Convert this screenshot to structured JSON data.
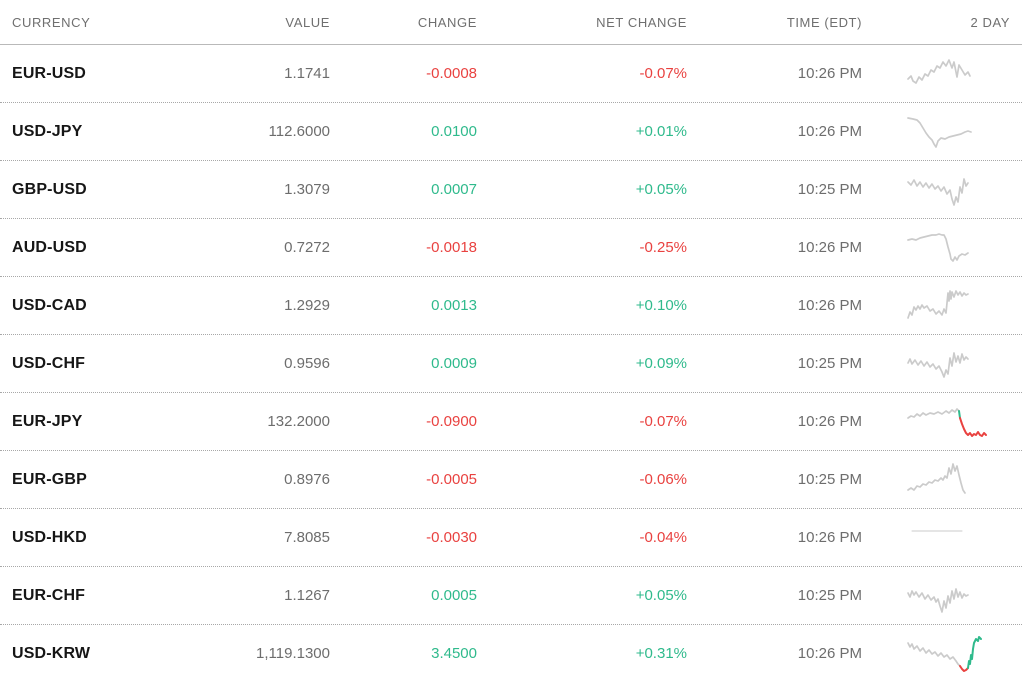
{
  "colors": {
    "up": "#2fba8c",
    "down": "#e94240",
    "neutral": "#cbcbcb",
    "header_text": "#6f6f6f",
    "label_text": "#161616",
    "value_text": "#6d6d6d"
  },
  "table": {
    "columns": [
      "CURRENCY",
      "VALUE",
      "CHANGE",
      "NET CHANGE",
      "TIME (EDT)",
      "2 DAY"
    ],
    "rows": [
      {
        "currency": "EUR-USD",
        "value": "1.1741",
        "change": "-0.0008",
        "net_change": "-0.07%",
        "time": "10:26 PM",
        "trend": "down",
        "spark": [
          {
            "c": "neutral",
            "p": "4,26 7,23 9,28 12,30 15,24 18,27 21,21 24,23 27,17 30,19 33,13 36,15 39,9 42,13 45,7 48,15 50,9 53,24 55,12 58,17 61,22 64,19 66,23"
          }
        ]
      },
      {
        "currency": "USD-JPY",
        "value": "112.6000",
        "change": "0.0100",
        "net_change": "+0.01%",
        "time": "10:26 PM",
        "trend": "up",
        "spark": [
          {
            "c": "neutral",
            "p": "4,7 9,8 13,9 16,12 19,17 22,22 25,26 28,29 30,33 32,36 34,30 37,27 41,28 45,26 49,25 53,24 57,23 61,21 64,20 67,21"
          }
        ]
      },
      {
        "currency": "GBP-USD",
        "value": "1.3079",
        "change": "0.0007",
        "net_change": "+0.05%",
        "time": "10:25 PM",
        "trend": "up",
        "spark": [
          {
            "c": "neutral",
            "p": "4,13 7,16 10,11 13,17 16,13 19,18 22,14 25,19 28,15 31,20 34,17 37,22 40,18 43,25 46,21 48,30 50,36 52,28 54,33 56,18 58,24 60,10 62,17 64,14"
          }
        ]
      },
      {
        "currency": "AUD-USD",
        "value": "0.7272",
        "change": "-0.0018",
        "net_change": "-0.25%",
        "time": "10:26 PM",
        "trend": "down",
        "spark": [
          {
            "c": "neutral",
            "p": "4,13 8,12 12,13 16,11 20,10 24,9 28,8 32,8 35,7 38,8 40,8 42,12 44,20 46,27 47,32 49,34 51,30 53,33 55,29 58,27 61,28 64,26"
          }
        ]
      },
      {
        "currency": "USD-CAD",
        "value": "1.2929",
        "change": "0.0013",
        "net_change": "+0.10%",
        "time": "10:26 PM",
        "trend": "up",
        "spark": [
          {
            "c": "neutral",
            "p": "4,33 6,27 8,30 10,22 12,25 14,21 16,24 18,20 20,23 23,21 26,26 29,24 32,29 35,26 38,30 40,24 42,28 44,8 45,16 46,6 47,14 48,7 50,12 52,6 54,10 56,7 58,11 60,8 62,10 64,9"
          }
        ]
      },
      {
        "currency": "USD-CHF",
        "value": "0.9596",
        "change": "0.0009",
        "net_change": "+0.09%",
        "time": "10:25 PM",
        "trend": "up",
        "spark": [
          {
            "c": "neutral",
            "p": "4,20 6,16 8,21 11,17 14,22 17,18 20,23 23,19 26,24 29,21 32,26 35,23 38,29 40,34 42,27 44,31 46,15 48,23 50,10 52,19 54,13 56,20 58,11 60,17 62,14 64,16"
          }
        ]
      },
      {
        "currency": "EUR-JPY",
        "value": "132.2000",
        "change": "-0.0900",
        "net_change": "-0.07%",
        "time": "10:26 PM",
        "trend": "down",
        "spark": [
          {
            "c": "neutral",
            "p": "4,17 7,15 10,16 13,13 16,15 19,12 22,14 26,12 30,13 34,11 38,13 42,10 45,12 48,9 51,11 53,8 55,10"
          },
          {
            "c": "up",
            "w": 2,
            "p": "55,10 56,17"
          },
          {
            "c": "down",
            "w": 2,
            "p": "56,17 58,23 60,28 62,32 64,34 66,32 68,35 70,33 72,34 74,31 76,34 78,35 80,32 82,34"
          }
        ]
      },
      {
        "currency": "EUR-GBP",
        "value": "0.8976",
        "change": "-0.0005",
        "net_change": "-0.06%",
        "time": "10:25 PM",
        "trend": "down",
        "spark": [
          {
            "c": "neutral",
            "p": "4,31 7,29 10,31 13,27 16,28 19,25 22,26 25,23 28,24 31,21 34,22 37,19 39,21 41,17 43,19 45,9 47,15 49,5 51,12 53,7 55,16 57,24 59,31 61,34"
          }
        ]
      },
      {
        "currency": "USD-HKD",
        "value": "7.8085",
        "change": "-0.0030",
        "net_change": "-0.04%",
        "time": "10:26 PM",
        "trend": "down",
        "spark": [
          {
            "c": "neutral",
            "w": 1,
            "p": "8,14 58,14"
          }
        ]
      },
      {
        "currency": "EUR-CHF",
        "value": "1.1267",
        "change": "0.0005",
        "net_change": "+0.05%",
        "time": "10:25 PM",
        "trend": "up",
        "spark": [
          {
            "c": "neutral",
            "p": "4,18 6,22 8,16 10,20 12,17 15,22 18,18 21,24 24,20 27,25 30,22 32,27 34,24 36,31 38,37 40,26 42,33 44,21 46,28 48,16 50,24 52,14 54,22 56,17 58,23 60,19 62,21 64,20"
          }
        ]
      },
      {
        "currency": "USD-KRW",
        "value": "1,119.1300",
        "change": "3.4500",
        "net_change": "+0.31%",
        "time": "10:26 PM",
        "trend": "up",
        "spark": [
          {
            "c": "neutral",
            "p": "4,10 6,14 8,11 10,16 13,13 16,18 19,15 22,20 25,17 28,21 31,19 34,23 37,20 40,24 43,22 46,26 49,24 52,28 54,31 56,33"
          },
          {
            "c": "down",
            "w": 2,
            "p": "56,33 58,36 60,38 62,37 64,35"
          },
          {
            "c": "up",
            "w": 2,
            "p": "64,35 65,28 66,31 67,22 68,26 69,16 70,10 72,6 74,8 75,4 77,6"
          }
        ]
      }
    ]
  }
}
